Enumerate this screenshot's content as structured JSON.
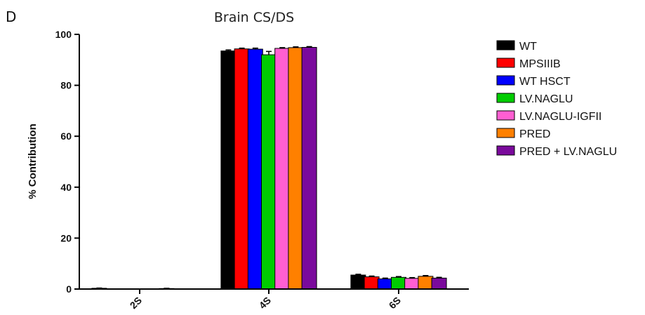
{
  "panel_letter": "D",
  "chart_data": {
    "type": "bar",
    "title": "Brain CS/DS",
    "xlabel": "",
    "ylabel": "% Contribution",
    "ylim": [
      0,
      100
    ],
    "yticks": [
      0,
      20,
      40,
      60,
      80,
      100
    ],
    "categories": [
      "2S",
      "4S",
      "6S"
    ],
    "grid": false,
    "legend_position": "right",
    "series": [
      {
        "name": "WT",
        "color": "#000000",
        "values": [
          0.3,
          93.5,
          5.5
        ],
        "errors": [
          0.1,
          0.4,
          0.3
        ]
      },
      {
        "name": "MPSIIIB",
        "color": "#ff0000",
        "values": [
          0.0,
          94.3,
          4.8
        ],
        "errors": [
          0.0,
          0.3,
          0.3
        ]
      },
      {
        "name": "WT HSCT",
        "color": "#0000ff",
        "values": [
          0.0,
          94.2,
          4.0
        ],
        "errors": [
          0.0,
          0.4,
          0.3
        ]
      },
      {
        "name": "LV.NAGLU",
        "color": "#00cc00",
        "values": [
          0.0,
          92.0,
          4.6
        ],
        "errors": [
          0.0,
          1.3,
          0.3
        ]
      },
      {
        "name": "LV.NAGLU-IGFII",
        "color": "#ff5fd2",
        "values": [
          0.0,
          94.5,
          4.2
        ],
        "errors": [
          0.0,
          0.3,
          0.3
        ]
      },
      {
        "name": "PRED",
        "color": "#ff8000",
        "values": [
          0.2,
          94.8,
          5.0
        ],
        "errors": [
          0.1,
          0.3,
          0.3
        ]
      },
      {
        "name": "PRED + LV.NAGLU",
        "color": "#7a0a9c",
        "values": [
          0.0,
          94.9,
          4.3
        ],
        "errors": [
          0.0,
          0.3,
          0.3
        ]
      }
    ]
  }
}
